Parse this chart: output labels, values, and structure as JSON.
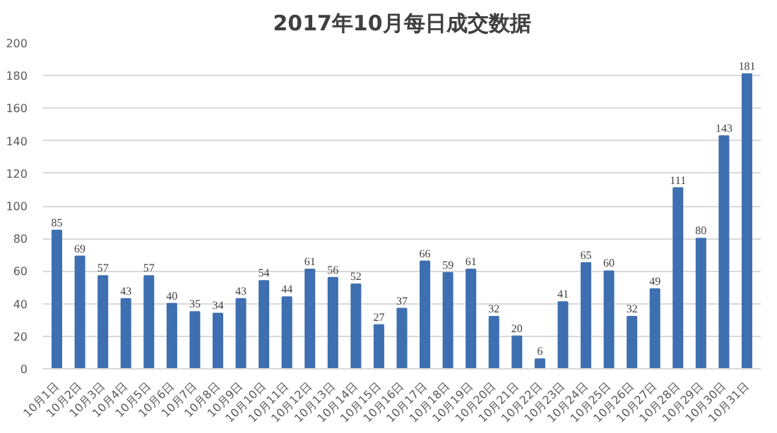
{
  "chart_data": {
    "type": "bar",
    "title": "2017年10月每日成交数据",
    "categories": [
      "10月1日",
      "10月2日",
      "10月3日",
      "10月4日",
      "10月5日",
      "10月6日",
      "10月7日",
      "10月8日",
      "10月9日",
      "10月10日",
      "10月11日",
      "10月12日",
      "10月13日",
      "10月14日",
      "10月15日",
      "10月16日",
      "10月17日",
      "10月18日",
      "10月19日",
      "10月20日",
      "10月21日",
      "10月22日",
      "10月23日",
      "10月24日",
      "10月25日",
      "10月26日",
      "10月27日",
      "10月28日",
      "10月29日",
      "10月30日",
      "10月31日"
    ],
    "values": [
      85,
      69,
      57,
      43,
      57,
      40,
      35,
      34,
      43,
      54,
      44,
      61,
      56,
      52,
      27,
      37,
      66,
      59,
      61,
      32,
      20,
      6,
      41,
      65,
      60,
      32,
      49,
      111,
      80,
      143,
      181
    ],
    "color": "#3e6fb0",
    "ylim": [
      0,
      200
    ],
    "yticks": [
      0,
      20,
      40,
      60,
      80,
      100,
      120,
      140,
      160,
      180,
      200
    ],
    "grid": "y",
    "data_labels": true
  }
}
